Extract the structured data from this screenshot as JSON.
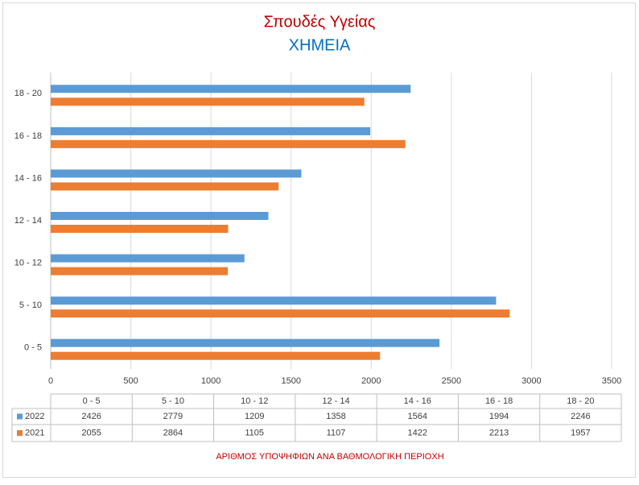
{
  "chart_data": {
    "type": "hbar",
    "title": "Σπουδές Υγείας",
    "subtitle": "ΧΗΜΕΙΑ",
    "x_label": "ΑΡΙΘΜΟΣ ΥΠΟΨΗΦΙΩΝ ΑΝΑ ΒΑΘΜΟΛΟΓΙΚΗ ΠΕΡΙΟΧΗ",
    "categories": [
      "0 - 5",
      "5 - 10",
      "10 - 12",
      "12 - 14",
      "14 - 16",
      "16 - 18",
      "18 - 20"
    ],
    "series": [
      {
        "name": "2022",
        "color": "#5b9bd5",
        "values": [
          2426,
          2779,
          1209,
          1358,
          1564,
          1994,
          2246
        ]
      },
      {
        "name": "2021",
        "color": "#ed7d31",
        "values": [
          2055,
          2864,
          1105,
          1107,
          1422,
          2213,
          1957
        ]
      }
    ],
    "xlim": [
      0,
      3500
    ],
    "xticks": [
      0,
      500,
      1000,
      1500,
      2000,
      2500,
      3000,
      3500
    ],
    "grid": true,
    "data_table": true
  }
}
